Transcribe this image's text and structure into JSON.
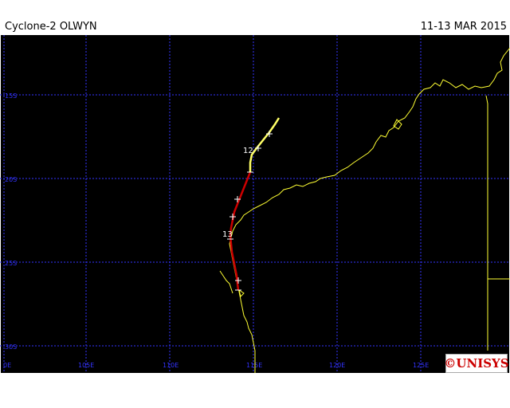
{
  "header": {
    "storm_title": "Cyclone-2 OLWYN",
    "date_range": "11-13 MAR 2015"
  },
  "axes": {
    "lat_labels": [
      "15S",
      "20S",
      "25S",
      "30S"
    ],
    "lon_labels": [
      "0E",
      "105E",
      "110E",
      "115E",
      "120E",
      "125E"
    ],
    "grid_color": "#3333ff",
    "label_color": "#3333ff"
  },
  "track": {
    "day_labels": [
      "12",
      "13"
    ],
    "colors": {
      "tropical_storm": "#ffff66",
      "cyclone": "#cc0000",
      "coastline": "#ffff33"
    }
  },
  "branding": {
    "logo_text": "©UNISYS",
    "logo_color": "#cc0000"
  }
}
